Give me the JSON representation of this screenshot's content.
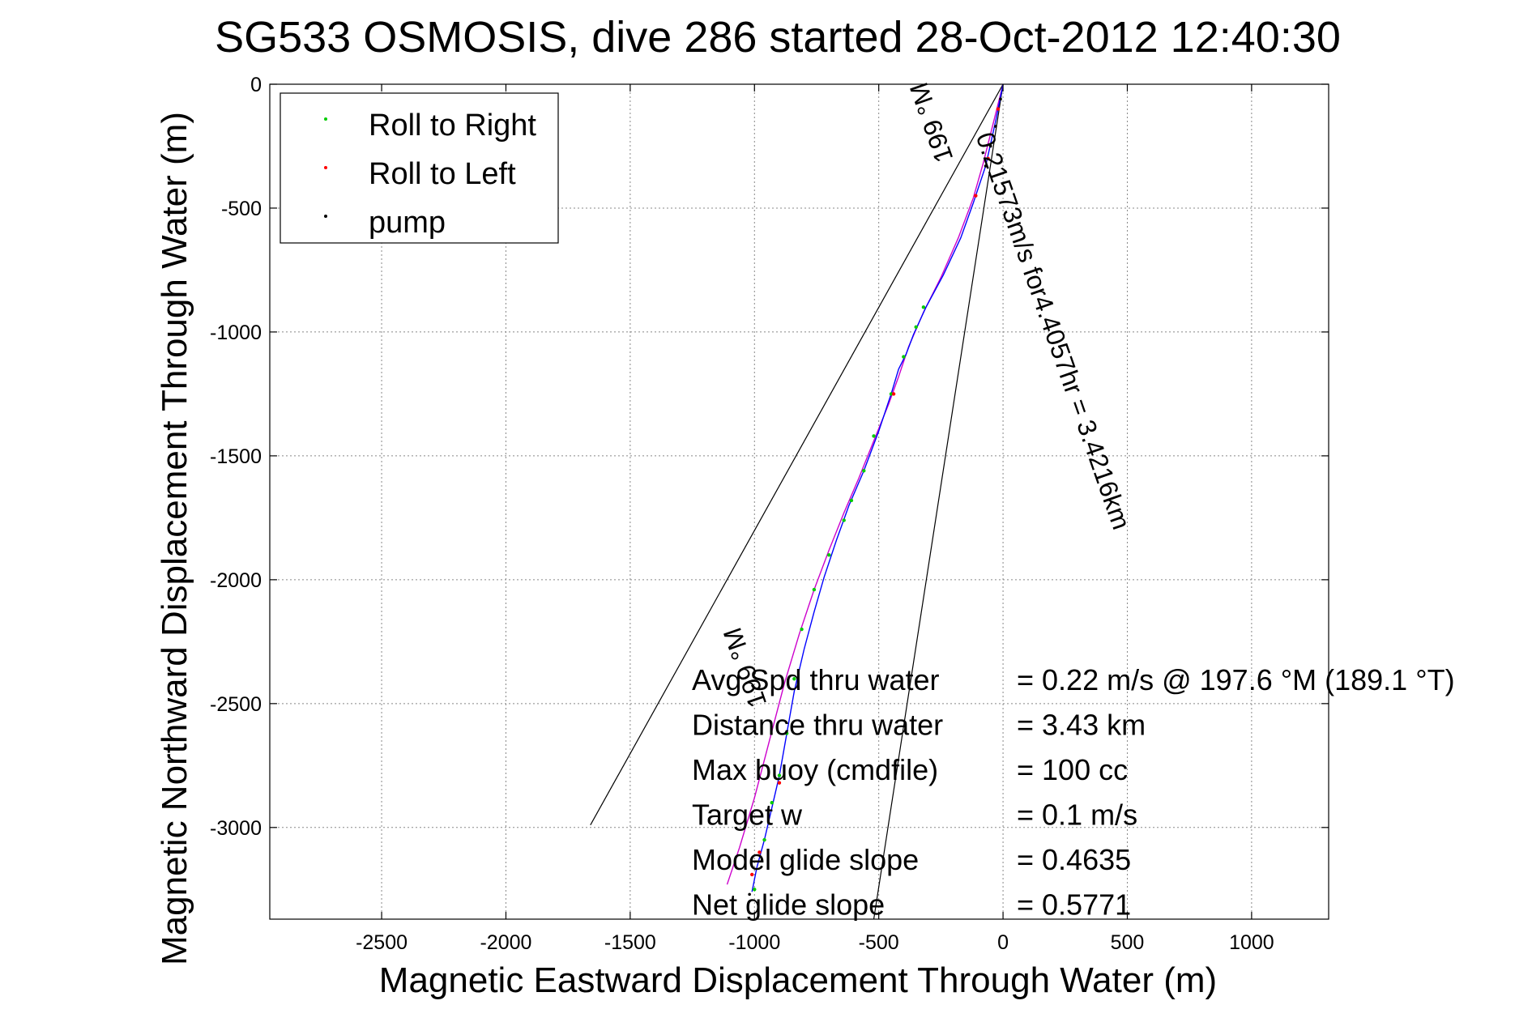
{
  "chart_data": {
    "type": "line",
    "title": "SG533 OSMOSIS, dive 286 started 28-Oct-2012 12:40:30",
    "xlabel": "Magnetic Eastward Displacement Through Water (m)",
    "ylabel": "Magnetic Northward Displacement Through Water (m)",
    "xlim": [
      -2950,
      1310
    ],
    "ylim": [
      -3370,
      0
    ],
    "xticks": [
      -2500,
      -2000,
      -1500,
      -1000,
      -500,
      0,
      500,
      1000
    ],
    "yticks": [
      0,
      -500,
      -1000,
      -1500,
      -2000,
      -2500,
      -3000
    ],
    "grid": true,
    "legend_position": "top-left",
    "legend": [
      {
        "label": "Roll to Right",
        "color": "#00cc00"
      },
      {
        "label": "Roll to Left",
        "color": "#ff0000"
      },
      {
        "label": "pump",
        "color": "#000000"
      }
    ],
    "series": {
      "track_blue": {
        "color": "#0000ff",
        "x": [
          0,
          -30,
          -70,
          -120,
          -170,
          -240,
          -310,
          -360,
          -390,
          -420,
          -450,
          -500,
          -560,
          -620,
          -670,
          -720,
          -760,
          -800,
          -840,
          -870,
          -900,
          -930,
          -960,
          -990,
          -1010
        ],
        "y": [
          0,
          -150,
          -330,
          -480,
          -620,
          -770,
          -900,
          -1010,
          -1090,
          -1150,
          -1250,
          -1400,
          -1560,
          -1700,
          -1840,
          -1990,
          -2130,
          -2280,
          -2450,
          -2620,
          -2790,
          -2920,
          -3050,
          -3160,
          -3260
        ]
      },
      "track_magenta": {
        "color": "#cc00cc",
        "x": [
          0,
          -40,
          -80,
          -120,
          -180,
          -250,
          -320,
          -380,
          -420,
          -460,
          -520,
          -580,
          -640,
          -700,
          -760,
          -820,
          -880,
          -940,
          -1000,
          -1060,
          -1110
        ],
        "y": [
          0,
          -160,
          -320,
          -460,
          -620,
          -780,
          -920,
          -1060,
          -1180,
          -1290,
          -1440,
          -1590,
          -1730,
          -1880,
          -2040,
          -2220,
          -2420,
          -2650,
          -2880,
          -3080,
          -3230
        ]
      },
      "roll_right_points": {
        "color": "#00cc00",
        "x": [
          -320,
          -350,
          -400,
          -450,
          -520,
          -560,
          -610,
          -640,
          -700,
          -760,
          -810,
          -840,
          -870,
          -900,
          -930,
          -960,
          -1000
        ],
        "y": [
          -900,
          -980,
          -1100,
          -1250,
          -1420,
          -1560,
          -1680,
          -1760,
          -1900,
          -2040,
          -2200,
          -2400,
          -2620,
          -2790,
          -2900,
          -3050,
          -3250
        ]
      },
      "roll_left_points": {
        "color": "#ff0000",
        "x": [
          -20,
          -60,
          -110,
          -440,
          -900,
          -980,
          -1010
        ],
        "y": [
          -100,
          -300,
          -450,
          -1250,
          -2820,
          -3100,
          -3190
        ]
      },
      "pump_points": {
        "color": "#000000",
        "x": [
          -10,
          -30,
          -50,
          -70,
          -1020
        ],
        "y": [
          -60,
          -170,
          -250,
          -330,
          -3270
        ]
      },
      "cone_lines": [
        {
          "x": [
            0,
            -1660
          ],
          "y": [
            0,
            -2990
          ]
        },
        {
          "x": [
            0,
            -520
          ],
          "y": [
            0,
            -3370
          ]
        }
      ]
    },
    "annotations": {
      "segment_label": "0.21573m/s for4.4057hr = 3.4216km",
      "heading_near": "199 °M",
      "heading_far": "199 °M"
    },
    "summary": [
      {
        "label": "Avg Spd thru water",
        "value": "=  0.22 m/s @ 197.6 °M (189.1 °T)"
      },
      {
        "label": "Distance thru water",
        "value": "=  3.43 km"
      },
      {
        "label": "Max buoy (cmdfile)",
        "value": "= 100 cc"
      },
      {
        "label": "Target w",
        "value": "= 0.1 m/s"
      },
      {
        "label": "Model glide slope",
        "value": "= 0.4635"
      },
      {
        "label": "Net glide slope",
        "value": "= 0.5771"
      }
    ]
  }
}
